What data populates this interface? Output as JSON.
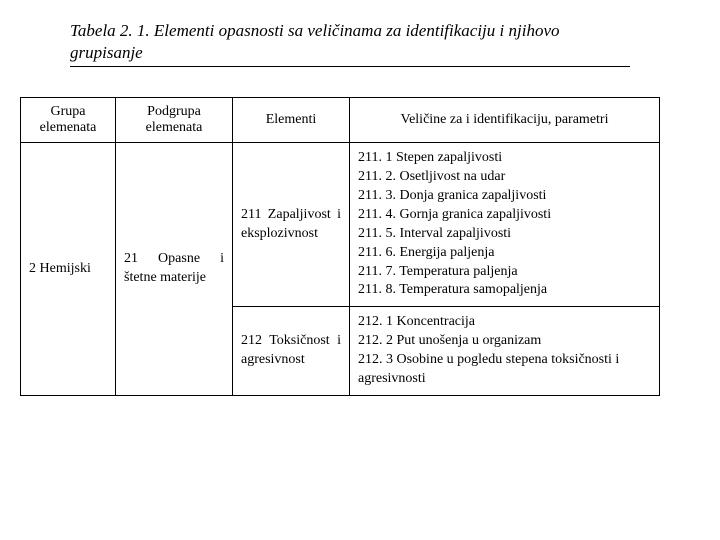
{
  "title": "Tabela 2. 1. Elementi opasnosti sa veličinama za identifikaciju  i njihovo grupisanje",
  "headers": {
    "grupa": "Grupa elemenata",
    "podgrupa": "Podgrupa elemenata",
    "elementi": "Elementi",
    "velicine": "Veličine za i identifikaciju, parametri"
  },
  "row": {
    "grupa": "2  Hemijski",
    "podgrupa": "21   Opasne   i štetne materije",
    "r1": {
      "elementi": "211 Zapaljivost i eksplozivnost",
      "v1": "211. 1 Stepen zapaljivosti",
      "v2": "211. 2. Osetljivost na udar",
      "v3": "211. 3. Donja granica zapaljivosti",
      "v4": "211. 4. Gornja granica zapaljivosti",
      "v5": "211. 5. Interval zapaljivosti",
      "v6": "211. 6. Energija paljenja",
      "v7": "211. 7. Temperatura paljenja",
      "v8": "211. 8. Temperatura samopaljenja"
    },
    "r2": {
      "elementi": "212 Toksičnost i agresivnost",
      "v1": "212. 1 Koncentracija",
      "v2": "212. 2 Put unošenja u organizam",
      "v3": "212. 3  Osobine  u  pogledu  stepena  toksičnosti  i agresivnosti"
    }
  }
}
